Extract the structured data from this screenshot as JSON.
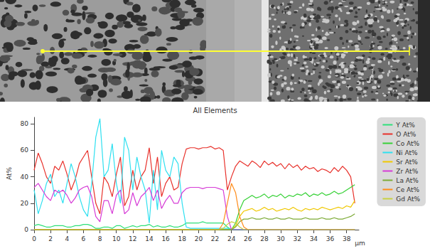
{
  "chart_data": {
    "type": "line",
    "title": "All Elements",
    "x_label": "µm",
    "y_label": "At%",
    "x": [
      0,
      0.5,
      1,
      1.5,
      2,
      2.5,
      3,
      3.5,
      4,
      4.5,
      5,
      5.5,
      6,
      6.5,
      7,
      7.5,
      8,
      8.5,
      9,
      9.5,
      10,
      10.5,
      11,
      11.5,
      12,
      12.5,
      13,
      13.5,
      14,
      14.5,
      15,
      15.5,
      16,
      16.5,
      17,
      17.5,
      18,
      18.5,
      19,
      19.5,
      20,
      20.5,
      21,
      21.5,
      22,
      22.5,
      23,
      23.5,
      24,
      24.5,
      25,
      25.5,
      26,
      26.5,
      27,
      27.5,
      28,
      28.5,
      29,
      29.5,
      30,
      30.5,
      31,
      31.5,
      32,
      32.5,
      33,
      33.5,
      34,
      34.5,
      35,
      35.5,
      36,
      36.5,
      37,
      37.5,
      38,
      38.5,
      39
    ],
    "xlim": [
      0,
      39.5
    ],
    "xticks": [
      0,
      2,
      4,
      6,
      8,
      10,
      12,
      14,
      16,
      18,
      20,
      22,
      24,
      26,
      28,
      30,
      32,
      34,
      36,
      38
    ],
    "ylim": [
      0,
      85
    ],
    "yticks": [
      0,
      20,
      40,
      60,
      80
    ],
    "grid": false,
    "legend": "right",
    "series": [
      {
        "name": "Y At%",
        "color": "#2fe07a",
        "values": [
          3,
          4,
          3,
          2,
          2,
          3,
          3,
          3,
          2,
          2,
          3,
          3,
          4,
          4,
          3,
          1,
          1,
          2,
          2,
          1,
          3,
          3,
          1,
          2,
          3,
          2,
          3,
          3,
          4,
          2,
          3,
          2,
          2,
          3,
          2,
          2,
          3,
          5,
          5,
          5,
          5,
          6,
          5,
          5,
          5,
          5,
          5,
          2,
          0,
          0,
          0,
          0,
          0,
          0,
          0,
          0,
          0,
          0,
          0,
          0,
          0,
          0,
          0,
          0,
          0,
          0,
          0,
          0,
          0,
          0,
          0,
          0,
          0,
          0,
          0,
          0,
          0,
          0,
          0
        ]
      },
      {
        "name": "O At%",
        "color": "#e8302a",
        "values": [
          45,
          58,
          50,
          40,
          35,
          48,
          45,
          52,
          42,
          30,
          38,
          50,
          55,
          60,
          40,
          20,
          12,
          40,
          35,
          25,
          42,
          55,
          18,
          25,
          45,
          30,
          40,
          45,
          62,
          35,
          55,
          25,
          35,
          40,
          30,
          32,
          50,
          61,
          62,
          62,
          61,
          62,
          62,
          63,
          61,
          62,
          60,
          30,
          40,
          48,
          52,
          50,
          48,
          52,
          50,
          47,
          52,
          49,
          51,
          48,
          50,
          46,
          50,
          47,
          49,
          45,
          48,
          46,
          47,
          44,
          46,
          45,
          43,
          47,
          44,
          48,
          45,
          40,
          20
        ]
      },
      {
        "name": "Co At%",
        "color": "#36d136",
        "values": [
          0,
          0,
          0,
          0,
          0,
          0,
          0,
          0,
          0,
          0,
          0,
          0,
          0,
          0,
          0,
          0,
          0,
          0,
          0,
          0,
          0,
          0,
          0,
          0,
          0,
          0,
          0,
          0,
          0,
          0,
          0,
          0,
          0,
          0,
          0,
          0,
          0,
          0,
          0,
          0,
          0,
          0,
          0,
          0,
          0,
          0,
          0,
          0,
          0,
          5,
          15,
          22,
          24,
          26,
          24,
          25,
          27,
          24,
          26,
          25,
          27,
          24,
          26,
          25,
          27,
          26,
          28,
          25,
          27,
          26,
          28,
          26,
          27,
          29,
          27,
          28,
          30,
          32,
          34
        ]
      },
      {
        "name": "Ni At%",
        "color": "#2fe0f0",
        "values": [
          30,
          12,
          22,
          35,
          42,
          25,
          30,
          20,
          35,
          50,
          40,
          25,
          15,
          10,
          35,
          70,
          84,
          40,
          45,
          65,
          35,
          20,
          70,
          60,
          30,
          55,
          40,
          30,
          5,
          45,
          15,
          60,
          45,
          40,
          55,
          50,
          20,
          2,
          1,
          1,
          1,
          1,
          1,
          1,
          1,
          1,
          1,
          1,
          0,
          0,
          0,
          0,
          0,
          0,
          0,
          0,
          0,
          0,
          0,
          0,
          0,
          0,
          0,
          0,
          0,
          0,
          0,
          0,
          0,
          0,
          0,
          0,
          0,
          0,
          0,
          0,
          0,
          0,
          0
        ]
      },
      {
        "name": "Sr At%",
        "color": "#f0c800",
        "values": [
          0,
          0,
          0,
          0,
          0,
          0,
          0,
          0,
          0,
          0,
          0,
          0,
          0,
          0,
          0,
          0,
          0,
          0,
          0,
          0,
          0,
          0,
          0,
          0,
          0,
          0,
          0,
          0,
          0,
          0,
          0,
          0,
          0,
          0,
          0,
          0,
          0,
          0,
          0,
          0,
          0,
          0,
          0,
          0,
          0,
          0,
          0,
          0,
          0,
          3,
          10,
          14,
          15,
          16,
          14,
          15,
          17,
          15,
          16,
          14,
          15,
          16,
          15,
          17,
          15,
          14,
          16,
          15,
          16,
          15,
          17,
          16,
          15,
          16,
          17,
          16,
          18,
          17,
          22
        ]
      },
      {
        "name": "Zr At%",
        "color": "#d63bd6",
        "values": [
          32,
          35,
          30,
          25,
          22,
          30,
          28,
          30,
          26,
          20,
          24,
          30,
          32,
          33,
          25,
          10,
          6,
          22,
          22,
          12,
          26,
          30,
          12,
          15,
          28,
          18,
          25,
          28,
          32,
          22,
          30,
          16,
          22,
          26,
          20,
          20,
          28,
          31,
          32,
          32,
          32,
          31,
          32,
          32,
          32,
          31,
          30,
          10,
          0,
          0,
          0,
          0,
          0,
          0,
          0,
          0,
          0,
          0,
          0,
          0,
          0,
          0,
          0,
          0,
          0,
          0,
          0,
          0,
          0,
          0,
          0,
          0,
          0,
          0,
          0,
          0,
          0,
          0,
          0
        ]
      },
      {
        "name": "La At%",
        "color": "#7dab37",
        "values": [
          0,
          0,
          0,
          0,
          0,
          0,
          0,
          0,
          0,
          0,
          0,
          0,
          0,
          0,
          0,
          0,
          0,
          0,
          0,
          0,
          0,
          0,
          0,
          0,
          0,
          0,
          0,
          0,
          0,
          0,
          0,
          0,
          0,
          0,
          0,
          0,
          0,
          0,
          0,
          0,
          0,
          0,
          0,
          0,
          0,
          0,
          0,
          0,
          0,
          2,
          6,
          8,
          8,
          9,
          8,
          8,
          9,
          8,
          8,
          9,
          8,
          8,
          9,
          8,
          8,
          8,
          9,
          8,
          8,
          8,
          9,
          8,
          8,
          9,
          8,
          8,
          9,
          10,
          12
        ]
      },
      {
        "name": "Ce At%",
        "color": "#ff8c1a",
        "values": [
          0,
          0,
          0,
          0,
          0,
          0,
          0,
          0,
          0,
          0,
          0,
          0,
          0,
          0,
          0,
          0,
          0,
          0,
          0,
          0,
          0,
          0,
          0,
          0,
          0,
          0,
          0,
          0,
          0,
          0,
          0,
          0,
          0,
          0,
          0,
          0,
          0,
          0,
          0,
          0,
          0,
          0,
          0,
          0,
          0,
          0,
          5,
          20,
          35,
          28,
          10,
          2,
          0,
          0,
          0,
          0,
          0,
          0,
          0,
          0,
          0,
          0,
          0,
          0,
          0,
          0,
          0,
          0,
          0,
          0,
          0,
          0,
          0,
          0,
          0,
          0,
          0,
          0,
          0
        ]
      },
      {
        "name": "Gd At%",
        "color": "#c8d040",
        "values": [
          0,
          0,
          0,
          0,
          0,
          0,
          0,
          0,
          0,
          0,
          0,
          0,
          0,
          0,
          0,
          0,
          0,
          0,
          0,
          0,
          0,
          0,
          0,
          0,
          0,
          0,
          0,
          0,
          0,
          0,
          0,
          0,
          0,
          0,
          0,
          0,
          0,
          0,
          0,
          0,
          0,
          0,
          0,
          0,
          0,
          0,
          1,
          4,
          6,
          5,
          2,
          0,
          0,
          0,
          0,
          0,
          0,
          0,
          0,
          0,
          0,
          0,
          0,
          0,
          0,
          0,
          0,
          0,
          0,
          0,
          0,
          0,
          0,
          0,
          0,
          0,
          0,
          0,
          0
        ]
      }
    ]
  }
}
